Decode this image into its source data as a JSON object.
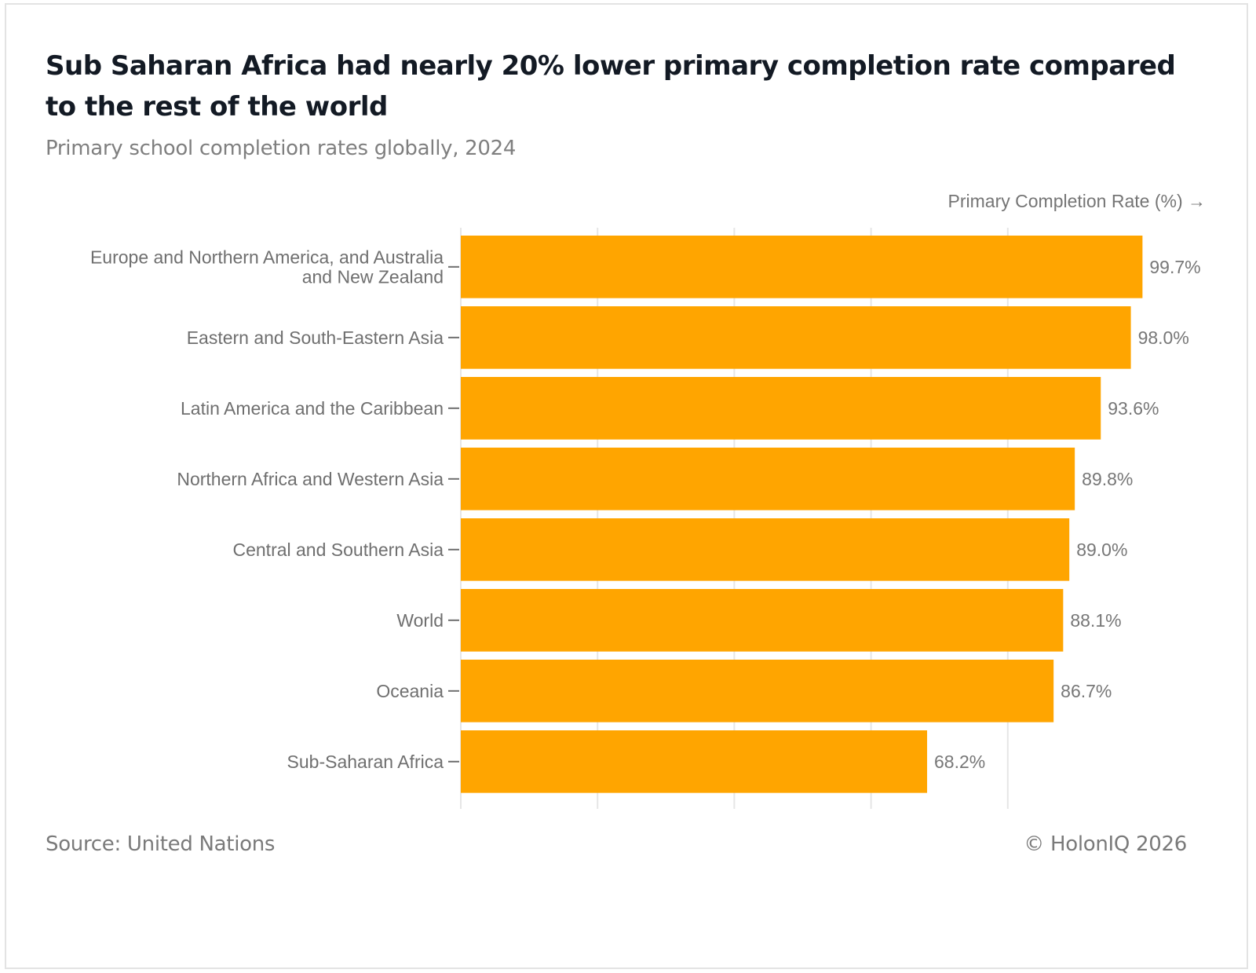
{
  "header": {
    "title": "Sub Saharan Africa had nearly 20% lower primary completion rate compared to the rest of the world",
    "subtitle": "Primary school completion rates globally, 2024"
  },
  "footer": {
    "source": "Source: United Nations",
    "copyright": "© HolonIQ 2026"
  },
  "colors": {
    "bar": "#FFA500",
    "grid": "#e6e6e6",
    "tick": "#6f6f6f"
  },
  "chart_data": {
    "type": "bar",
    "orientation": "horizontal",
    "title": "Sub Saharan Africa had nearly 20% lower primary completion rate compared to the rest of the world",
    "subtitle": "Primary school completion rates globally, 2024",
    "xlabel": "Primary Completion Rate (%) →",
    "ylabel": "",
    "xlim": [
      0,
      100
    ],
    "x_gridlines": [
      0,
      20,
      40,
      60,
      80
    ],
    "x_tick_labels_shown": false,
    "grid": true,
    "legend": "none",
    "categories": [
      [
        "Europe and Northern America, and Australia",
        "and New Zealand"
      ],
      [
        "Eastern and South-Eastern Asia"
      ],
      [
        "Latin America and the Caribbean"
      ],
      [
        "Northern Africa and Western Asia"
      ],
      [
        "Central and Southern Asia"
      ],
      [
        "World"
      ],
      [
        "Oceania"
      ],
      [
        "Sub-Saharan Africa"
      ]
    ],
    "values": [
      99.7,
      98.0,
      93.6,
      89.8,
      89.0,
      88.1,
      86.7,
      68.2
    ],
    "data_labels": [
      "99.7%",
      "98.0%",
      "93.6%",
      "89.8%",
      "89.0%",
      "88.1%",
      "86.7%",
      "68.2%"
    ]
  }
}
